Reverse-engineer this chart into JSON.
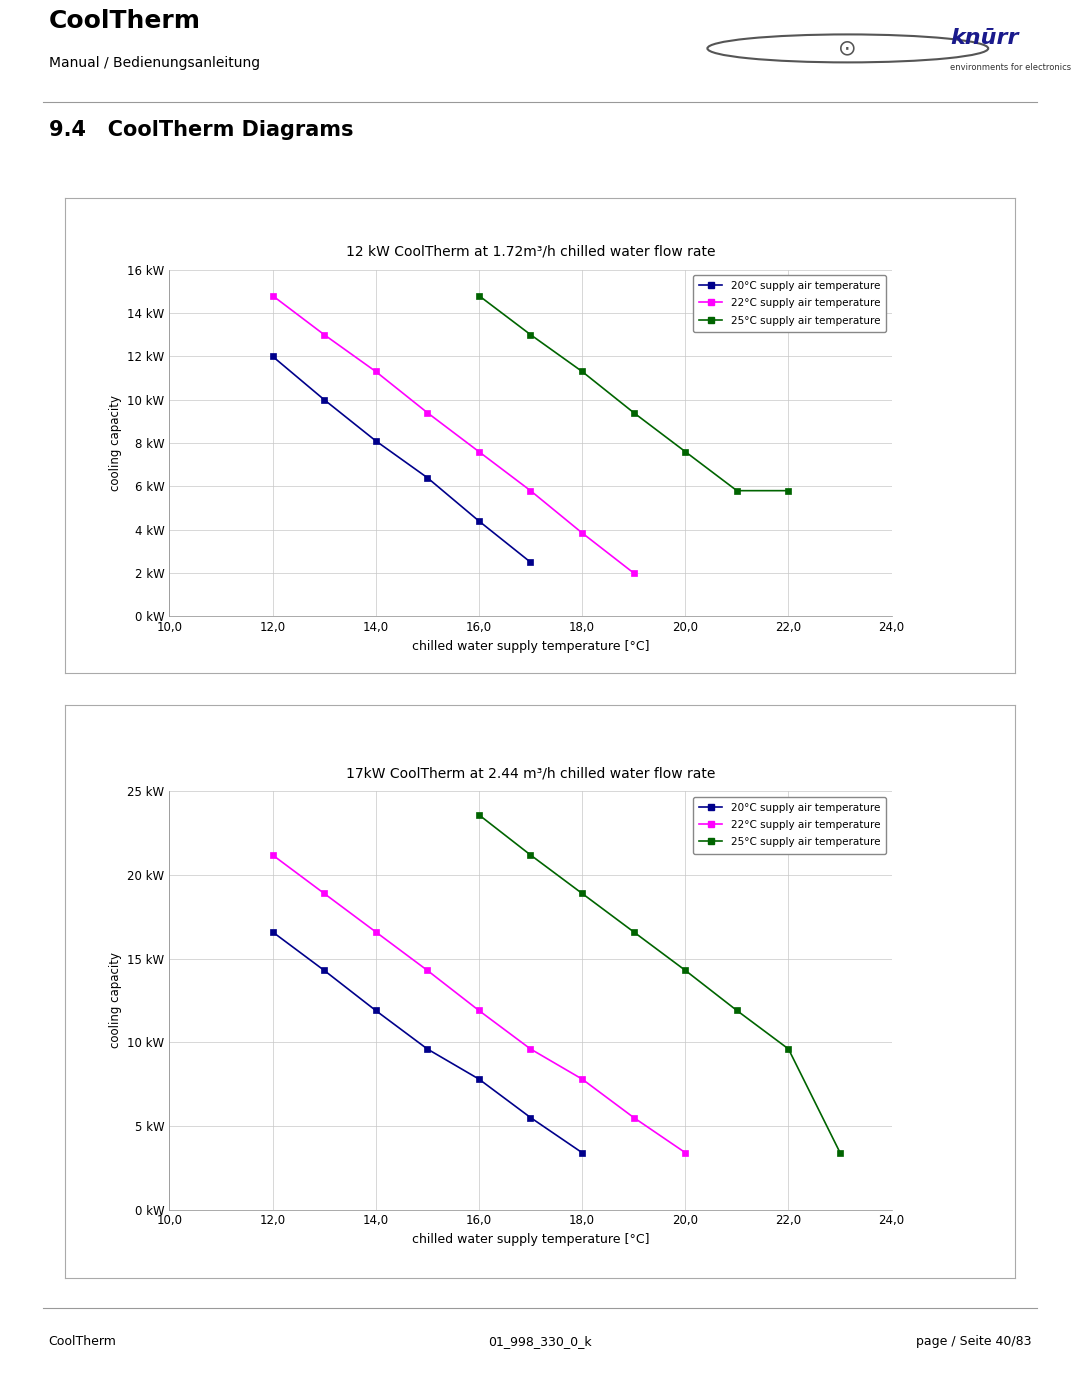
{
  "page_bg": "#ffffff",
  "header": {
    "title": "CoolTherm",
    "subtitle": "Manual / Bedienungsanleitung"
  },
  "section_title": "9.4   CoolTherm Diagrams",
  "footer_left": "CoolTherm",
  "footer_center": "01_998_330_0_k",
  "footer_right": "page / Seite 40/83",
  "chart1": {
    "title": "12 kW CoolTherm at 1.72m³/h chilled water flow rate",
    "xlabel": "chilled water supply temperature [°C]",
    "ylabel": "cooling capacity",
    "xlim": [
      10.0,
      24.0
    ],
    "ylim": [
      0,
      16
    ],
    "xticks": [
      10.0,
      12.0,
      14.0,
      16.0,
      18.0,
      20.0,
      22.0,
      24.0
    ],
    "yticks": [
      0,
      2,
      4,
      6,
      8,
      10,
      12,
      14,
      16
    ],
    "ytick_labels": [
      "0 kW",
      "2 kW",
      "4 kW",
      "6 kW",
      "8 kW",
      "10 kW",
      "12 kW",
      "14 kW",
      "16 kW"
    ],
    "xtick_labels": [
      "10,0",
      "12,0",
      "14,0",
      "16,0",
      "18,0",
      "20,0",
      "22,0",
      "24,0"
    ],
    "series": [
      {
        "label": "20°C supply air temperature",
        "color": "#00008B",
        "x": [
          12,
          13,
          14,
          15,
          16,
          17
        ],
        "y": [
          12.0,
          10.0,
          8.1,
          6.4,
          4.4,
          2.5
        ]
      },
      {
        "label": "22°C supply air temperature",
        "color": "#FF00FF",
        "x": [
          12,
          13,
          14,
          15,
          16,
          17,
          18,
          19
        ],
        "y": [
          14.8,
          13.0,
          11.3,
          9.4,
          7.6,
          5.8,
          3.85,
          2.0
        ]
      },
      {
        "label": "25°C supply air temperature",
        "color": "#006400",
        "x": [
          16,
          17,
          18,
          19,
          20,
          21,
          22
        ],
        "y": [
          14.8,
          13.0,
          11.3,
          9.4,
          7.6,
          5.8,
          5.8
        ]
      }
    ]
  },
  "chart2": {
    "title": "17kW CoolTherm at 2.44 m³/h chilled water flow rate",
    "xlabel": "chilled water supply temperature [°C]",
    "ylabel": "cooling capacity",
    "xlim": [
      10.0,
      24.0
    ],
    "ylim": [
      0,
      25
    ],
    "xticks": [
      10.0,
      12.0,
      14.0,
      16.0,
      18.0,
      20.0,
      22.0,
      24.0
    ],
    "yticks": [
      0,
      5,
      10,
      15,
      20,
      25
    ],
    "ytick_labels": [
      "0 kW",
      "5 kW",
      "10 kW",
      "15 kW",
      "20 kW",
      "25 kW"
    ],
    "xtick_labels": [
      "10,0",
      "12,0",
      "14,0",
      "16,0",
      "18,0",
      "20,0",
      "22,0",
      "24,0"
    ],
    "series": [
      {
        "label": "20°C supply air temperature",
        "color": "#00008B",
        "x": [
          12,
          13,
          14,
          15,
          16,
          17,
          18
        ],
        "y": [
          16.6,
          14.3,
          11.9,
          9.6,
          7.8,
          5.5,
          3.4
        ]
      },
      {
        "label": "22°C supply air temperature",
        "color": "#FF00FF",
        "x": [
          12,
          13,
          14,
          15,
          16,
          17,
          18,
          19,
          20
        ],
        "y": [
          21.2,
          18.9,
          16.6,
          14.3,
          11.9,
          9.6,
          7.8,
          5.5,
          3.4
        ]
      },
      {
        "label": "25°C supply air temperature",
        "color": "#006400",
        "x": [
          16,
          17,
          18,
          19,
          20,
          21,
          22,
          23
        ],
        "y": [
          23.6,
          21.2,
          18.9,
          16.6,
          14.3,
          11.9,
          9.6,
          3.4
        ]
      }
    ]
  }
}
